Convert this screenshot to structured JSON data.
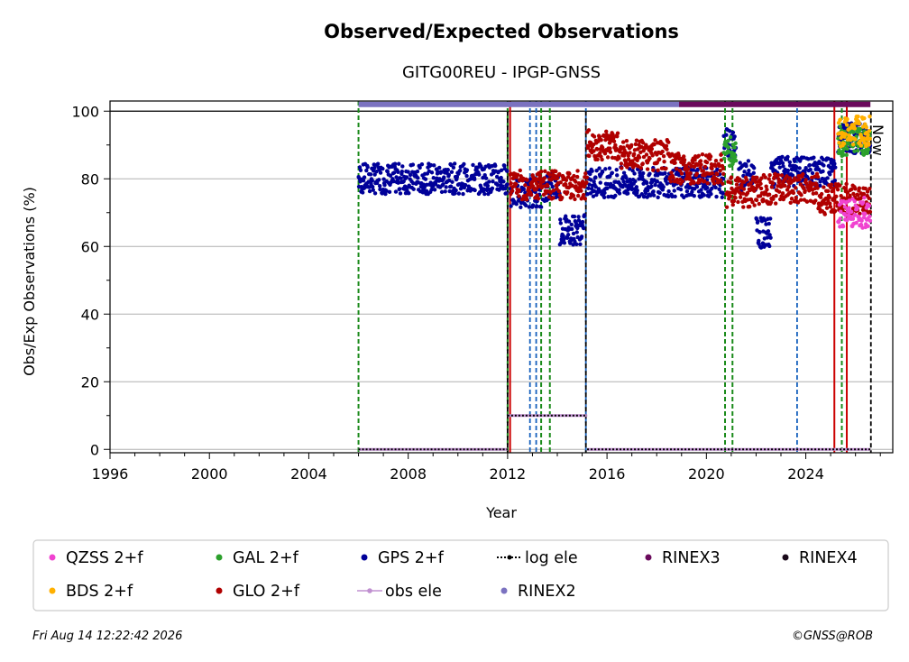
{
  "chart_data": {
    "type": "scatter",
    "title": "Observed/Expected Observations",
    "subtitle": "GITG00REU - IPGP-GNSS",
    "xlabel": "Year",
    "ylabel": "Obs/Exp Observations (%)",
    "xlim": [
      1996,
      2027.5
    ],
    "ylim": [
      -1,
      103
    ],
    "xticks": [
      1996,
      2000,
      2004,
      2008,
      2012,
      2016,
      2020,
      2024
    ],
    "yticks": [
      0,
      20,
      40,
      60,
      80,
      100
    ],
    "grid": "horizontal",
    "now_label": "Now",
    "now_x": 2026.62,
    "legend": {
      "placement": "below",
      "entries": [
        {
          "label": "QZSS 2+f",
          "color": "#f043d0",
          "marker": "dot"
        },
        {
          "label": "GAL 2+f",
          "color": "#2ca02c",
          "marker": "dot"
        },
        {
          "label": "GPS 2+f",
          "color": "#000099",
          "marker": "dot"
        },
        {
          "label": "log ele",
          "color": "#000000",
          "marker": "dotted-line"
        },
        {
          "label": "RINEX3",
          "color": "#6a0a5c",
          "marker": "dot"
        },
        {
          "label": "RINEX4",
          "color": "#1a0a1a",
          "marker": "dot"
        },
        {
          "label": "BDS 2+f",
          "color": "#ffb000",
          "marker": "dot"
        },
        {
          "label": "GLO 2+f",
          "color": "#b00000",
          "marker": "dot"
        },
        {
          "label": "obs ele",
          "color": "#c090d0",
          "marker": "line-dot"
        },
        {
          "label": "RINEX2",
          "color": "#7b72c0",
          "marker": "dot"
        }
      ]
    },
    "series": [
      {
        "name": "GPS 2+f",
        "color": "#000099",
        "segments": [
          {
            "x": [
              2006.0,
              2012.0
            ],
            "y": 80
          },
          {
            "x": [
              2012.1,
              2013.5
            ],
            "y": 76
          },
          {
            "x": [
              2013.5,
              2014.1
            ],
            "y": 78
          },
          {
            "x": [
              2014.1,
              2015.1
            ],
            "y": 65
          },
          {
            "x": [
              2015.2,
              2020.7
            ],
            "y": 79
          },
          {
            "x": [
              2020.7,
              2021.2
            ],
            "y": 91
          },
          {
            "x": [
              2021.3,
              2022.0
            ],
            "y": 81
          },
          {
            "x": [
              2022.0,
              2022.6
            ],
            "y": 64
          },
          {
            "x": [
              2022.6,
              2025.2
            ],
            "y": 82
          },
          {
            "x": [
              2025.3,
              2026.6
            ],
            "y": 92
          }
        ]
      },
      {
        "name": "GLO 2+f",
        "color": "#b00000",
        "segments": [
          {
            "x": [
              2012.1,
              2015.2
            ],
            "y": 78
          },
          {
            "x": [
              2015.2,
              2016.5
            ],
            "y": 90
          },
          {
            "x": [
              2016.5,
              2018.5
            ],
            "y": 87
          },
          {
            "x": [
              2018.5,
              2020.7
            ],
            "y": 83
          },
          {
            "x": [
              2020.8,
              2022.0
            ],
            "y": 76
          },
          {
            "x": [
              2022.0,
              2024.5
            ],
            "y": 77
          },
          {
            "x": [
              2024.5,
              2026.6
            ],
            "y": 74
          }
        ]
      },
      {
        "name": "GAL 2+f",
        "color": "#2ca02c",
        "segments": [
          {
            "x": [
              2020.7,
              2021.2
            ],
            "y": 88
          },
          {
            "x": [
              2025.3,
              2026.6
            ],
            "y": 91
          }
        ]
      },
      {
        "name": "BDS 2+f",
        "color": "#ffb000",
        "segments": [
          {
            "x": [
              2025.3,
              2026.6
            ],
            "y": 94
          }
        ]
      },
      {
        "name": "QZSS 2+f",
        "color": "#f043d0",
        "segments": [
          {
            "x": [
              2025.3,
              2026.6
            ],
            "y": 70
          }
        ]
      },
      {
        "name": "obs ele",
        "color": "#c090d0",
        "segments": [
          {
            "x": [
              2006.0,
              2012.0
            ],
            "y": 0
          },
          {
            "x": [
              2012.0,
              2015.2
            ],
            "y": 10
          },
          {
            "x": [
              2015.2,
              2026.6
            ],
            "y": 0
          }
        ]
      },
      {
        "name": "log ele",
        "color": "#000000",
        "segments": [
          {
            "x": [
              2006.0,
              2012.0
            ],
            "y": 0
          },
          {
            "x": [
              2012.0,
              2015.2
            ],
            "y": 10
          },
          {
            "x": [
              2015.2,
              2026.6
            ],
            "y": 0
          }
        ]
      },
      {
        "name": "RINEX2",
        "color": "#7b72c0",
        "segments": [
          {
            "x": [
              2006.0,
              2018.9
            ],
            "y": 102
          }
        ]
      },
      {
        "name": "RINEX3",
        "color": "#6a0a5c",
        "segments": [
          {
            "x": [
              2018.9,
              2026.6
            ],
            "y": 102
          }
        ]
      }
    ],
    "event_lines": {
      "red_solid": [
        2012.1,
        2025.15,
        2025.65
      ],
      "green_dashed": [
        2006.0,
        2012.0,
        2013.35,
        2013.7,
        2020.75,
        2021.05,
        2025.45
      ],
      "blue_dashed": [
        2012.9,
        2013.15,
        2015.15,
        2023.65
      ],
      "black_dashed": [
        2012.0,
        2015.15,
        2026.62
      ]
    }
  },
  "footer": {
    "timestamp": "Fri Aug 14 12:22:42 2026",
    "credit": "©GNSS@ROB"
  }
}
